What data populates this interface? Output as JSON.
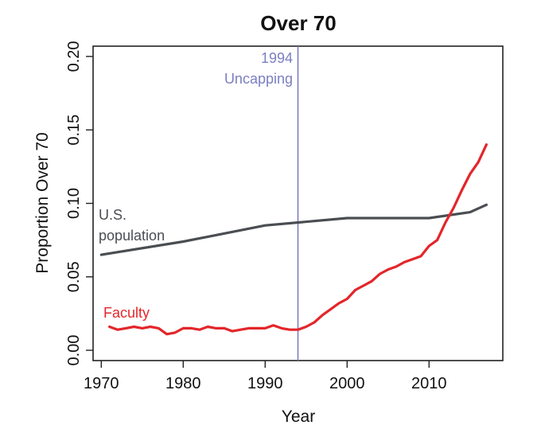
{
  "chart_data": {
    "type": "line",
    "title": "Over 70",
    "xlabel": "Year",
    "ylabel": "Proportion Over 70",
    "xlim": [
      1969,
      2019
    ],
    "ylim": [
      -0.007,
      0.207
    ],
    "x_ticks": [
      "1970",
      "1980",
      "1990",
      "2000",
      "2010"
    ],
    "y_ticks": [
      "0.00",
      "0.05",
      "0.10",
      "0.15",
      "0.20"
    ],
    "grid": false,
    "legend": "none",
    "series": [
      {
        "name": "U.S. population",
        "color": "#4a4d52",
        "x": [
          1970,
          1980,
          1990,
          2000,
          2010,
          2015,
          2017
        ],
        "y": [
          0.065,
          0.074,
          0.085,
          0.09,
          0.09,
          0.094,
          0.099
        ]
      },
      {
        "name": "Faculty",
        "color": "#e3262a",
        "x": [
          1971,
          1972,
          1973,
          1974,
          1975,
          1976,
          1977,
          1978,
          1979,
          1980,
          1981,
          1982,
          1983,
          1984,
          1985,
          1986,
          1987,
          1988,
          1989,
          1990,
          1991,
          1992,
          1993,
          1994,
          1995,
          1996,
          1997,
          1998,
          1999,
          2000,
          2001,
          2002,
          2003,
          2004,
          2005,
          2006,
          2007,
          2008,
          2009,
          2010,
          2011,
          2012,
          2013,
          2014,
          2015,
          2016,
          2017
        ],
        "y": [
          0.016,
          0.014,
          0.015,
          0.016,
          0.015,
          0.016,
          0.015,
          0.011,
          0.012,
          0.015,
          0.015,
          0.014,
          0.016,
          0.015,
          0.015,
          0.013,
          0.014,
          0.015,
          0.015,
          0.015,
          0.017,
          0.015,
          0.014,
          0.014,
          0.016,
          0.019,
          0.024,
          0.028,
          0.032,
          0.035,
          0.041,
          0.044,
          0.047,
          0.052,
          0.055,
          0.057,
          0.06,
          0.062,
          0.064,
          0.071,
          0.075,
          0.087,
          0.097,
          0.109,
          0.12,
          0.128,
          0.14
        ]
      }
    ],
    "annotations": {
      "vline": {
        "x": 1994,
        "color": "#7b7fc0",
        "label_lines": [
          "1994",
          "Uncapping"
        ]
      },
      "population_label": [
        "U.S.",
        "population"
      ],
      "faculty_label": "Faculty"
    }
  }
}
